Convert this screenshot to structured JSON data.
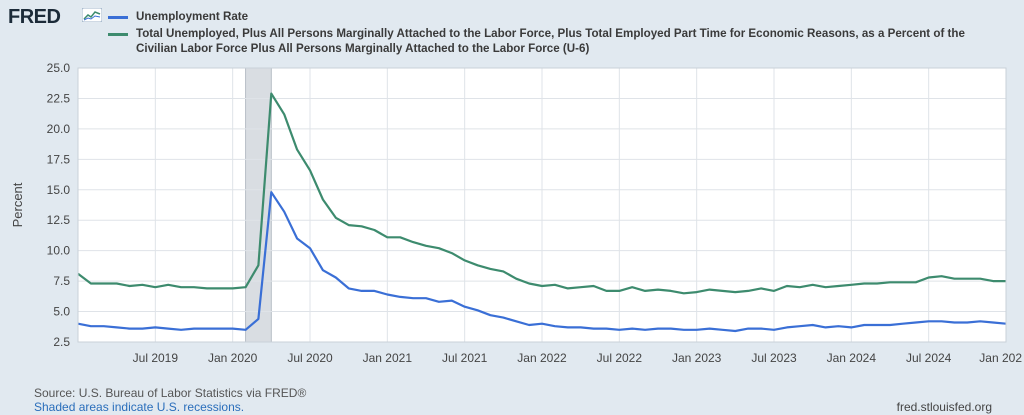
{
  "brand": {
    "logo_text": "FRED",
    "icon": "sparkline-chart-icon"
  },
  "chart_data": {
    "type": "line",
    "ylabel": "Percent",
    "ylim": [
      2.5,
      25.0
    ],
    "yticks": [
      "25.0",
      "22.5",
      "20.0",
      "17.5",
      "15.0",
      "12.5",
      "10.0",
      "7.5",
      "5.0",
      "2.5"
    ],
    "ytick_values": [
      25.0,
      22.5,
      20.0,
      17.5,
      15.0,
      12.5,
      10.0,
      7.5,
      5.0,
      2.5
    ],
    "xlim": [
      "2019-01",
      "2025-01"
    ],
    "xticks": [
      {
        "date": "2019-07",
        "label": "Jul 2019"
      },
      {
        "date": "2020-01",
        "label": "Jan 2020"
      },
      {
        "date": "2020-07",
        "label": "Jul 2020"
      },
      {
        "date": "2021-01",
        "label": "Jan 2021"
      },
      {
        "date": "2021-07",
        "label": "Jul 2021"
      },
      {
        "date": "2022-01",
        "label": "Jan 2022"
      },
      {
        "date": "2022-07",
        "label": "Jul 2022"
      },
      {
        "date": "2023-01",
        "label": "Jan 2023"
      },
      {
        "date": "2023-07",
        "label": "Jul 2023"
      },
      {
        "date": "2024-01",
        "label": "Jan 2024"
      },
      {
        "date": "2024-07",
        "label": "Jul 2024"
      },
      {
        "date": "2025-01",
        "label": "Jan 202"
      }
    ],
    "grid": true,
    "recession": {
      "start": "2020-02",
      "end": "2020-04"
    },
    "start": "2019-01",
    "series": [
      {
        "name": "Unemployment Rate",
        "color": "#3a6fd6",
        "values": [
          4.0,
          3.8,
          3.8,
          3.7,
          3.6,
          3.6,
          3.7,
          3.6,
          3.5,
          3.6,
          3.6,
          3.6,
          3.6,
          3.5,
          4.4,
          14.8,
          13.2,
          11.0,
          10.2,
          8.4,
          7.8,
          6.9,
          6.7,
          6.7,
          6.4,
          6.2,
          6.1,
          6.1,
          5.8,
          5.9,
          5.4,
          5.1,
          4.7,
          4.5,
          4.2,
          3.9,
          4.0,
          3.8,
          3.7,
          3.7,
          3.6,
          3.6,
          3.5,
          3.6,
          3.5,
          3.6,
          3.6,
          3.5,
          3.5,
          3.6,
          3.5,
          3.4,
          3.6,
          3.6,
          3.5,
          3.7,
          3.8,
          3.9,
          3.7,
          3.8,
          3.7,
          3.9,
          3.9,
          3.9,
          4.0,
          4.1,
          4.2,
          4.2,
          4.1,
          4.1,
          4.2,
          4.1,
          4.0
        ]
      },
      {
        "name": "Total Unemployed, Plus All Persons Marginally Attached to the Labor Force, Plus Total Employed Part Time for Economic Reasons, as a Percent of the Civilian Labor Force Plus All Persons Marginally Attached to the Labor Force (U-6)",
        "color": "#3d8b6e",
        "values": [
          8.1,
          7.3,
          7.3,
          7.3,
          7.1,
          7.2,
          7.0,
          7.2,
          7.0,
          7.0,
          6.9,
          6.9,
          6.9,
          7.0,
          8.8,
          22.9,
          21.2,
          18.3,
          16.6,
          14.2,
          12.7,
          12.1,
          12.0,
          11.7,
          11.1,
          11.1,
          10.7,
          10.4,
          10.2,
          9.8,
          9.2,
          8.8,
          8.5,
          8.3,
          7.7,
          7.3,
          7.1,
          7.2,
          6.9,
          7.0,
          7.1,
          6.7,
          6.7,
          7.0,
          6.7,
          6.8,
          6.7,
          6.5,
          6.6,
          6.8,
          6.7,
          6.6,
          6.7,
          6.9,
          6.7,
          7.1,
          7.0,
          7.2,
          7.0,
          7.1,
          7.2,
          7.3,
          7.3,
          7.4,
          7.4,
          7.4,
          7.8,
          7.9,
          7.7,
          7.7,
          7.7,
          7.5,
          7.5
        ]
      }
    ]
  },
  "footer": {
    "source": "Source: U.S. Bureau of Labor Statistics via FRED®",
    "recession_note": "Shaded areas indicate U.S. recessions.",
    "url": "fred.stlouisfed.org"
  }
}
